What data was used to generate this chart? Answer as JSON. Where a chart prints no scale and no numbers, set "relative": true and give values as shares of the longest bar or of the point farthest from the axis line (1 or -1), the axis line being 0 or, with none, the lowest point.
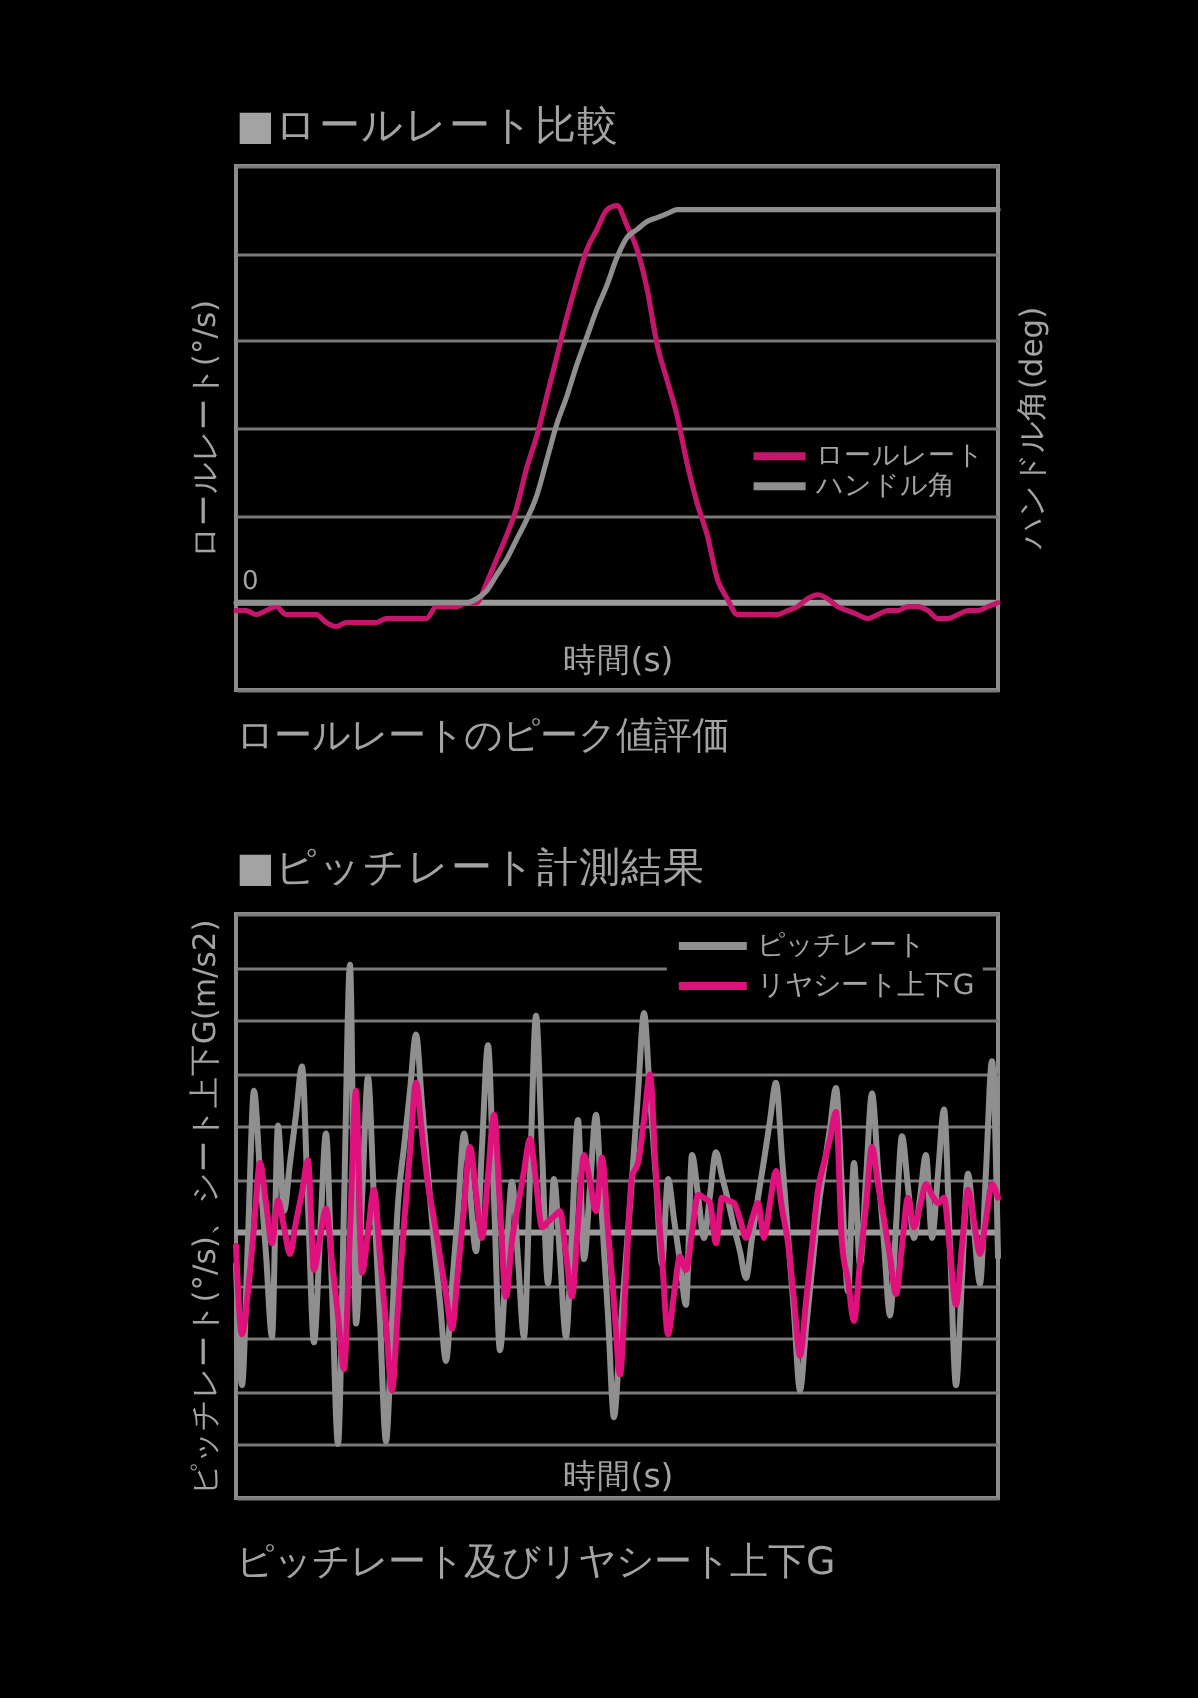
{
  "chart_data": [
    {
      "type": "line",
      "title": "■ロールレート比較",
      "xlabel": "時間(s)",
      "ylabel": "ロールレート(°/s)",
      "y2label": "ハンドル角(deg)",
      "relative": true,
      "grid": "y",
      "legend": "right",
      "categories": [
        null,
        null,
        null,
        null,
        null,
        null,
        null,
        null,
        null,
        null,
        null,
        null,
        null,
        null,
        null,
        null,
        null,
        null,
        null,
        null,
        null,
        null,
        null,
        null,
        null,
        null,
        null,
        null,
        null,
        null,
        null,
        null,
        null,
        null,
        null,
        null,
        null,
        null,
        null,
        null,
        null,
        null,
        null,
        null,
        null,
        null,
        null,
        null,
        null,
        null,
        null,
        null,
        null,
        null,
        null,
        null,
        null,
        null,
        null,
        null,
        null,
        null,
        null,
        null,
        null,
        null,
        null,
        null,
        null,
        null,
        null,
        null,
        null,
        null,
        null,
        null,
        null
      ],
      "series": [
        {
          "name": "ロールレート",
          "color": "#c4176c",
          "values": [
            -0.02,
            -0.02,
            -0.03,
            -0.02,
            -0.01,
            -0.03,
            -0.03,
            -0.03,
            -0.03,
            -0.05,
            -0.06,
            -0.05,
            -0.05,
            -0.05,
            -0.05,
            -0.04,
            -0.04,
            -0.04,
            -0.04,
            -0.04,
            -0.01,
            -0.01,
            -0.01,
            0.0,
            0.0,
            0.05,
            0.11,
            0.17,
            0.24,
            0.34,
            0.42,
            0.52,
            0.62,
            0.72,
            0.81,
            0.89,
            0.94,
            0.99,
            1.0,
            0.95,
            0.89,
            0.79,
            0.65,
            0.56,
            0.47,
            0.35,
            0.25,
            0.17,
            0.06,
            0.01,
            -0.03,
            -0.03,
            -0.03,
            -0.03,
            -0.03,
            -0.02,
            -0.01,
            0.01,
            0.02,
            0.01,
            -0.01,
            -0.02,
            -0.03,
            -0.04,
            -0.03,
            -0.02,
            -0.02,
            -0.01,
            -0.01,
            -0.02,
            -0.04,
            -0.04,
            -0.03,
            -0.02,
            -0.02,
            -0.01,
            0.0
          ]
        },
        {
          "name": "ハンドル角",
          "color": "#8f8f8f",
          "values": [
            0,
            0,
            0,
            0,
            0,
            0,
            0,
            0,
            0,
            0,
            0,
            0,
            0,
            0,
            0,
            0,
            0,
            0,
            0,
            0,
            0,
            0,
            0,
            0,
            0.01,
            0.03,
            0.07,
            0.11,
            0.16,
            0.21,
            0.27,
            0.36,
            0.45,
            0.52,
            0.6,
            0.67,
            0.74,
            0.8,
            0.87,
            0.92,
            0.94,
            0.96,
            0.97,
            0.98,
            0.99,
            0.99,
            0.99,
            0.99,
            0.99,
            0.99,
            0.99,
            0.99,
            0.99,
            0.99,
            0.99,
            0.99,
            0.99,
            0.99,
            0.99,
            0.99,
            0.99,
            0.99,
            0.99,
            0.99,
            0.99,
            0.99,
            0.99,
            0.99,
            0.99,
            0.99,
            0.99,
            0.99,
            0.99,
            0.99,
            0.99,
            0.99,
            0.99
          ]
        }
      ],
      "ref_lines": [
        {
          "axis": "y",
          "value": 0,
          "label": "0",
          "color": "#9c9c9c"
        }
      ],
      "annotations": [
        "ロールレートのピーク値評価"
      ]
    },
    {
      "type": "line",
      "title": "■ピッチレート計測結果",
      "xlabel": "時間(s)",
      "ylabel": "ピッチレート(°/s)、シート上下G(m/s2)",
      "relative": true,
      "grid": "y",
      "legend": "top right",
      "categories": [
        null,
        null,
        null,
        null,
        null,
        null,
        null,
        null,
        null,
        null,
        null,
        null,
        null,
        null,
        null,
        null,
        null,
        null,
        null,
        null,
        null,
        null,
        null,
        null,
        null,
        null,
        null,
        null,
        null,
        null,
        null,
        null,
        null,
        null,
        null,
        null,
        null,
        null,
        null,
        null,
        null,
        null,
        null,
        null,
        null,
        null,
        null,
        null,
        null,
        null,
        null,
        null,
        null,
        null,
        null,
        null,
        null,
        null,
        null,
        null,
        null,
        null,
        null,
        null,
        null,
        null,
        null,
        null,
        null,
        null,
        null,
        null,
        null,
        null,
        null,
        null,
        null,
        null,
        null,
        null,
        null,
        null,
        null,
        null,
        null,
        null,
        null,
        null,
        null,
        null,
        null,
        null,
        null,
        null,
        null,
        null,
        null,
        null,
        null,
        null,
        null,
        null,
        null,
        null,
        null,
        null,
        null,
        null,
        null,
        null,
        null,
        null,
        null,
        null,
        null,
        null,
        null,
        null,
        null,
        null,
        null,
        null,
        null,
        null,
        null,
        null,
        null,
        null
      ],
      "series": [
        {
          "name": "ピッチレート",
          "color": "#8f8f8f",
          "values": [
            -0.12,
            -0.57,
            -0.02,
            0.53,
            0.22,
            -0.08,
            -0.39,
            0.4,
            0.08,
            0.26,
            0.44,
            0.62,
            0.1,
            -0.41,
            -0.02,
            0.37,
            -0.21,
            -0.79,
            0.1,
            1.0,
            -0.34,
            0.12,
            0.58,
            0.12,
            -0.33,
            -0.78,
            -0.34,
            0.11,
            0.32,
            0.53,
            0.74,
            0.48,
            0.22,
            -0.04,
            -0.26,
            -0.48,
            -0.2,
            0.08,
            0.37,
            0.15,
            -0.07,
            0.32,
            0.7,
            0.13,
            -0.44,
            -0.12,
            0.19,
            -0.1,
            -0.39,
            0.21,
            0.81,
            0.31,
            -0.19,
            0.2,
            -0.09,
            -0.39,
            0.01,
            0.42,
            -0.1,
            0.17,
            0.44,
            0.06,
            -0.31,
            -0.69,
            -0.39,
            -0.09,
            0.2,
            0.52,
            0.82,
            0.51,
            0.2,
            -0.12,
            0.2,
            0.05,
            -0.11,
            -0.27,
            0.29,
            0.14,
            -0.02,
            0.14,
            0.3,
            0.21,
            0.12,
            0.02,
            -0.07,
            -0.17,
            -0.02,
            0.13,
            0.27,
            0.42,
            0.56,
            0.28,
            -0.01,
            -0.3,
            -0.59,
            -0.36,
            -0.14,
            0.08,
            0.24,
            0.39,
            0.54,
            0.16,
            -0.22,
            0.26,
            -0.12,
            0.2,
            0.52,
            0.24,
            -0.04,
            -0.31,
            0.02,
            0.36,
            0.17,
            -0.02,
            0.13,
            0.29,
            -0.02,
            0.22,
            0.46,
            -0.05,
            -0.57,
            -0.17,
            0.22,
            0.01,
            -0.19,
            0.23,
            0.64,
            -0.09
          ]
        },
        {
          "name": "リヤシート上下G",
          "color": "#df127d",
          "values": [
            -0.05,
            -0.38,
            -0.22,
            0.02,
            0.26,
            0.11,
            -0.04,
            0.12,
            0.02,
            -0.08,
            0.04,
            0.15,
            0.27,
            -0.14,
            -0.02,
            0.09,
            -0.11,
            -0.31,
            -0.51,
            0.01,
            0.53,
            -0.15,
            0.0,
            0.16,
            -0.09,
            -0.34,
            -0.59,
            -0.28,
            0.03,
            0.3,
            0.56,
            0.37,
            0.18,
            0.05,
            -0.09,
            -0.23,
            -0.36,
            -0.14,
            0.09,
            0.32,
            0.15,
            -0.02,
            0.21,
            0.44,
            0.1,
            -0.24,
            -0.03,
            0.1,
            0.23,
            0.35,
            0.19,
            0.02,
            0.04,
            0.06,
            0.08,
            -0.08,
            -0.24,
            0.03,
            0.29,
            0.19,
            0.08,
            0.28,
            0.01,
            -0.26,
            -0.53,
            -0.16,
            0.21,
            0.26,
            0.42,
            0.59,
            0.21,
            -0.09,
            -0.38,
            -0.23,
            -0.09,
            -0.14,
            0.0,
            0.14,
            0.13,
            0.11,
            -0.04,
            0.13,
            0.12,
            0.11,
            0.05,
            -0.02,
            0.05,
            0.11,
            -0.02,
            0.11,
            0.23,
            0.09,
            -0.04,
            -0.25,
            -0.46,
            -0.26,
            -0.05,
            0.16,
            0.26,
            0.35,
            0.45,
            -0.04,
            -0.18,
            -0.33,
            -0.11,
            0.1,
            0.32,
            0.18,
            0.05,
            -0.09,
            -0.23,
            -0.05,
            0.13,
            0.02,
            0.1,
            0.18,
            0.14,
            0.11,
            0.13,
            -0.07,
            -0.27,
            -0.05,
            0.16,
            0.04,
            -0.08,
            0.05,
            0.18,
            0.13
          ]
        }
      ],
      "ref_lines": [
        {
          "axis": "y",
          "value": 0,
          "color": "#9c9c9c"
        }
      ],
      "annotations": [
        "ピッチレート及びリヤシート上下G"
      ]
    }
  ]
}
